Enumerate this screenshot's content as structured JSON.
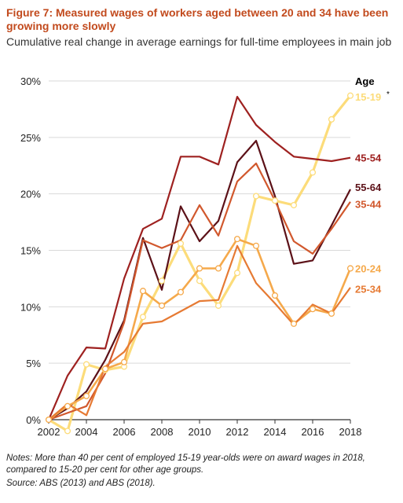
{
  "title": "Figure 7: Measured wages of workers aged between 20 and 34 have been growing more slowly",
  "subtitle": "Cumulative real change in average earnings for full-time employees in main job",
  "notes": "Notes: More than 40 per cent of employed 15-19 year-olds were on award wages in 2018, compared to 15-20 per cent for other age groups.",
  "source": "Source: ABS (2013) and ABS (2018).",
  "chart_data": {
    "type": "line",
    "xlabel": "",
    "ylabel": "",
    "legend_title": "Age",
    "ylim": [
      0,
      30
    ],
    "xlim": [
      2002,
      2018
    ],
    "y_ticks": [
      0,
      5,
      10,
      15,
      20,
      25,
      30
    ],
    "y_tick_labels": [
      "0%",
      "5%",
      "10%",
      "15%",
      "20%",
      "25%",
      "30%"
    ],
    "x_ticks": [
      2002,
      2004,
      2006,
      2008,
      2010,
      2012,
      2014,
      2016,
      2018
    ],
    "x_tick_labels": [
      "2002",
      "2004",
      "2006",
      "2008",
      "2010",
      "2012",
      "2014",
      "2016",
      "2018"
    ],
    "grid": true,
    "x": [
      2002,
      2003,
      2004,
      2005,
      2006,
      2007,
      2008,
      2009,
      2010,
      2011,
      2012,
      2013,
      2014,
      2015,
      2016,
      2017,
      2018
    ],
    "series": [
      {
        "name": "15-19",
        "asterisk": "*",
        "color": "#fcdc7a",
        "markers": true,
        "width": 3.2,
        "values": [
          0,
          -1.0,
          4.9,
          4.4,
          4.7,
          9.1,
          12.3,
          15.6,
          12.3,
          10.1,
          13.0,
          19.8,
          19.4,
          19.0,
          21.9,
          26.6,
          28.7
        ]
      },
      {
        "name": "45-54",
        "color": "#9e2120",
        "markers": false,
        "width": 2.2,
        "values": [
          0,
          3.9,
          6.4,
          6.3,
          12.5,
          16.9,
          17.8,
          23.3,
          23.3,
          22.6,
          28.6,
          26.1,
          24.6,
          23.3,
          23.1,
          22.9,
          23.2
        ]
      },
      {
        "name": "55-64",
        "color": "#5c1118",
        "markers": false,
        "width": 2.2,
        "values": [
          0,
          1.0,
          2.5,
          5.3,
          8.8,
          16.1,
          11.5,
          18.9,
          15.8,
          17.6,
          22.8,
          24.7,
          19.8,
          13.8,
          14.1,
          17.2,
          20.4
        ]
      },
      {
        "name": "35-44",
        "color": "#d1582d",
        "markers": false,
        "width": 2.2,
        "values": [
          0,
          0.6,
          1.2,
          4.1,
          8.6,
          15.9,
          15.2,
          15.9,
          19.0,
          16.3,
          21.1,
          22.7,
          19.4,
          15.8,
          14.7,
          16.9,
          19.3
        ]
      },
      {
        "name": "20-24",
        "color": "#f5a94b",
        "markers": true,
        "width": 2.6,
        "values": [
          0,
          1.2,
          2.1,
          4.5,
          5.1,
          11.4,
          10.1,
          11.3,
          13.4,
          13.4,
          16.0,
          15.4,
          11.0,
          8.5,
          9.8,
          9.4,
          13.4
        ]
      },
      {
        "name": "25-34",
        "color": "#e67a33",
        "markers": false,
        "width": 2.2,
        "values": [
          0,
          1.4,
          0.4,
          4.7,
          6.0,
          8.5,
          8.7,
          9.6,
          10.5,
          10.6,
          15.4,
          12.1,
          10.3,
          8.4,
          10.2,
          9.4,
          11.7
        ]
      }
    ]
  }
}
